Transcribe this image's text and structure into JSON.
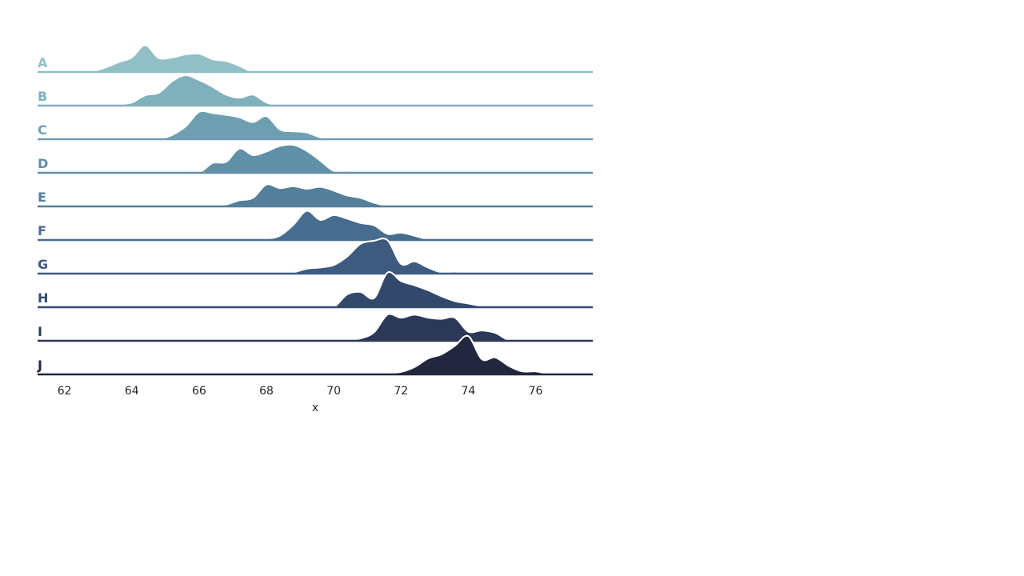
{
  "chart_data": {
    "type": "area",
    "chart_style": "ridgeline",
    "title": "",
    "xlabel": "x",
    "ylabel": "",
    "xlim": [
      61.2,
      77.7
    ],
    "x_ticks": [
      62,
      64,
      66,
      68,
      70,
      72,
      74,
      76
    ],
    "grid": false,
    "legend": "none",
    "outline_color": "#ffffff",
    "x": [
      61.2,
      61.6,
      62.0,
      62.4,
      62.8,
      63.2,
      63.6,
      64.0,
      64.4,
      64.8,
      65.2,
      65.6,
      66.0,
      66.4,
      66.8,
      67.2,
      67.6,
      68.0,
      68.4,
      68.8,
      69.2,
      69.6,
      70.0,
      70.4,
      70.8,
      71.2,
      71.6,
      72.0,
      72.4,
      72.8,
      73.2,
      73.6,
      74.0,
      74.4,
      74.8,
      75.2,
      75.6,
      76.0,
      76.4,
      76.8,
      77.2,
      77.6
    ],
    "series": [
      {
        "name": "A",
        "color": "#91bfc5",
        "values": [
          0,
          0,
          0,
          0,
          0.02,
          0.14,
          0.32,
          0.48,
          0.88,
          0.46,
          0.48,
          0.58,
          0.6,
          0.42,
          0.36,
          0.2,
          0,
          0,
          0,
          0,
          0,
          0,
          0,
          0,
          0,
          0,
          0,
          0,
          0,
          0,
          0,
          0,
          0,
          0,
          0,
          0,
          0,
          0,
          0,
          0,
          0,
          0
        ]
      },
      {
        "name": "B",
        "color": "#80b0bb",
        "values": [
          0,
          0,
          0,
          0,
          0,
          0,
          0.04,
          0.1,
          0.34,
          0.42,
          0.8,
          1.0,
          0.84,
          0.62,
          0.36,
          0.26,
          0.36,
          0.1,
          0,
          0,
          0,
          0,
          0,
          0,
          0,
          0,
          0,
          0,
          0,
          0,
          0,
          0,
          0,
          0,
          0,
          0,
          0,
          0,
          0,
          0,
          0,
          0
        ]
      },
      {
        "name": "C",
        "color": "#6e9fb0",
        "values": [
          0,
          0,
          0,
          0,
          0,
          0,
          0,
          0,
          0,
          0,
          0.14,
          0.42,
          0.9,
          0.86,
          0.8,
          0.72,
          0.56,
          0.76,
          0.32,
          0.26,
          0.22,
          0.06,
          0,
          0,
          0,
          0,
          0,
          0,
          0,
          0,
          0,
          0,
          0,
          0,
          0,
          0,
          0,
          0,
          0,
          0,
          0,
          0
        ]
      },
      {
        "name": "D",
        "color": "#6090a7",
        "values": [
          0,
          0,
          0,
          0,
          0,
          0,
          0,
          0,
          0,
          0,
          0,
          0,
          0,
          0.32,
          0.36,
          0.8,
          0.58,
          0.7,
          0.88,
          0.92,
          0.72,
          0.4,
          0.06,
          0.06,
          0,
          0,
          0,
          0,
          0,
          0,
          0,
          0,
          0,
          0,
          0,
          0,
          0,
          0,
          0,
          0,
          0,
          0
        ]
      },
      {
        "name": "E",
        "color": "#547f9b",
        "values": [
          0,
          0,
          0,
          0,
          0,
          0,
          0,
          0,
          0,
          0,
          0,
          0,
          0,
          0,
          0.06,
          0.2,
          0.28,
          0.72,
          0.6,
          0.66,
          0.58,
          0.64,
          0.52,
          0.36,
          0.28,
          0.12,
          0.02,
          0,
          0,
          0,
          0,
          0,
          0,
          0,
          0,
          0,
          0,
          0,
          0,
          0,
          0,
          0
        ]
      },
      {
        "name": "F",
        "color": "#486c8e",
        "values": [
          0,
          0,
          0,
          0,
          0,
          0,
          0,
          0,
          0,
          0,
          0,
          0,
          0,
          0,
          0,
          0,
          0,
          0.04,
          0.14,
          0.5,
          0.96,
          0.66,
          0.82,
          0.7,
          0.56,
          0.48,
          0.2,
          0.24,
          0.14,
          0.02,
          0,
          0,
          0,
          0,
          0,
          0,
          0,
          0,
          0,
          0,
          0,
          0
        ]
      },
      {
        "name": "G",
        "color": "#3e5a7f",
        "values": [
          0,
          0,
          0,
          0,
          0,
          0,
          0,
          0,
          0,
          0,
          0,
          0,
          0,
          0,
          0,
          0,
          0,
          0,
          0,
          0.04,
          0.16,
          0.2,
          0.28,
          0.56,
          0.98,
          1.08,
          1.1,
          0.32,
          0.4,
          0.2,
          0.04,
          0.06,
          0.02,
          0,
          0,
          0,
          0,
          0,
          0,
          0,
          0,
          0
        ]
      },
      {
        "name": "H",
        "color": "#33496c",
        "values": [
          0,
          0,
          0,
          0,
          0,
          0,
          0,
          0,
          0,
          0,
          0,
          0,
          0,
          0,
          0,
          0,
          0,
          0,
          0,
          0,
          0,
          0,
          0,
          0.42,
          0.5,
          0.3,
          1.14,
          0.86,
          0.72,
          0.56,
          0.36,
          0.2,
          0.12,
          0.04,
          0.04,
          0,
          0,
          0,
          0,
          0,
          0,
          0
        ]
      },
      {
        "name": "I",
        "color": "#2b3857",
        "values": [
          0,
          0,
          0,
          0,
          0,
          0,
          0,
          0,
          0,
          0,
          0,
          0,
          0,
          0,
          0,
          0,
          0,
          0,
          0,
          0,
          0,
          0,
          0,
          0.02,
          0.08,
          0.28,
          0.86,
          0.76,
          0.86,
          0.76,
          0.72,
          0.76,
          0.3,
          0.34,
          0.26,
          0.02,
          0,
          0,
          0,
          0,
          0,
          0
        ]
      },
      {
        "name": "J",
        "color": "#22273f",
        "values": [
          0,
          0,
          0,
          0,
          0,
          0,
          0,
          0,
          0,
          0,
          0,
          0,
          0,
          0,
          0,
          0,
          0,
          0,
          0,
          0,
          0,
          0,
          0,
          0,
          0,
          0.04,
          0.04,
          0.08,
          0.24,
          0.52,
          0.66,
          0.94,
          1.26,
          0.5,
          0.56,
          0.28,
          0.1,
          0.1,
          0.02,
          0,
          0,
          0
        ]
      }
    ]
  }
}
